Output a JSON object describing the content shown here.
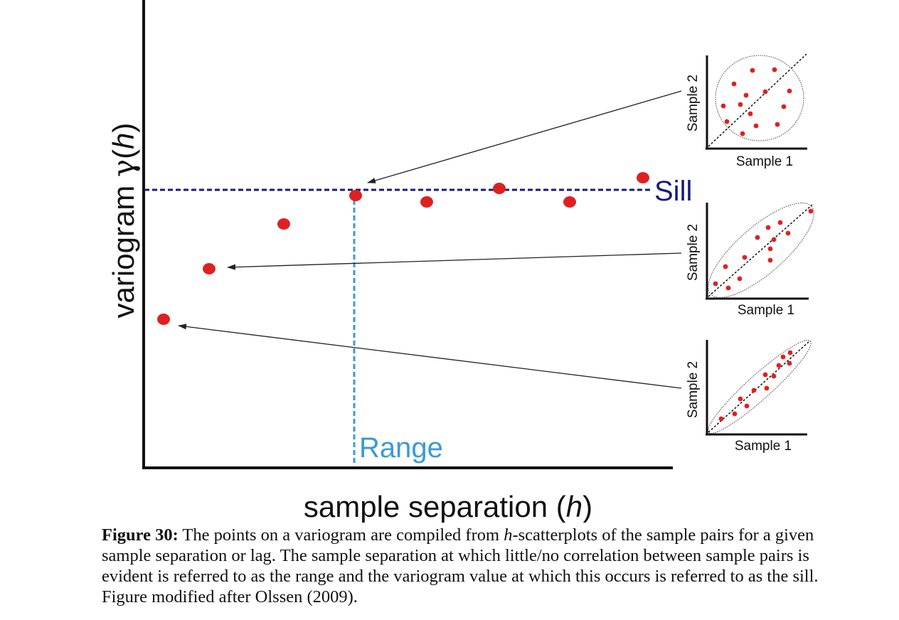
{
  "figure": {
    "y_axis_label_main": "variogram ",
    "y_axis_label_gamma": "γ",
    "y_axis_label_open": "(",
    "y_axis_label_h": "h",
    "y_axis_label_close": ")",
    "x_axis_label_main": "sample separation (",
    "x_axis_label_h": "h",
    "x_axis_label_close": ")",
    "sill_label": "Sill",
    "range_label": "Range",
    "colors": {
      "point": "#e02020",
      "sill_line": "#1a1a7a",
      "range_line": "#3a9ad9",
      "axis": "#111111",
      "arrow": "#222222"
    },
    "variogram_points_count": 8,
    "insets": [
      {
        "id": "top",
        "x_label": "Sample 1",
        "y_label": "Sample 2",
        "correlation": "none"
      },
      {
        "id": "middle",
        "x_label": "Sample 1",
        "y_label": "Sample 2",
        "correlation": "moderate"
      },
      {
        "id": "bottom",
        "x_label": "Sample 1",
        "y_label": "Sample 2",
        "correlation": "strong"
      }
    ]
  },
  "caption": {
    "label": "Figure 30:",
    "text_1": " The points on a variogram are compiled from ",
    "text_h": "h",
    "text_2": "-scatterplots of the sample pairs for a given sample separation or lag. The sample separation at which little/no correlation between sample pairs is evident is referred to as the range and the variogram value at which this occurs is referred to as the sill. Figure modified after Olssen (2009)."
  }
}
